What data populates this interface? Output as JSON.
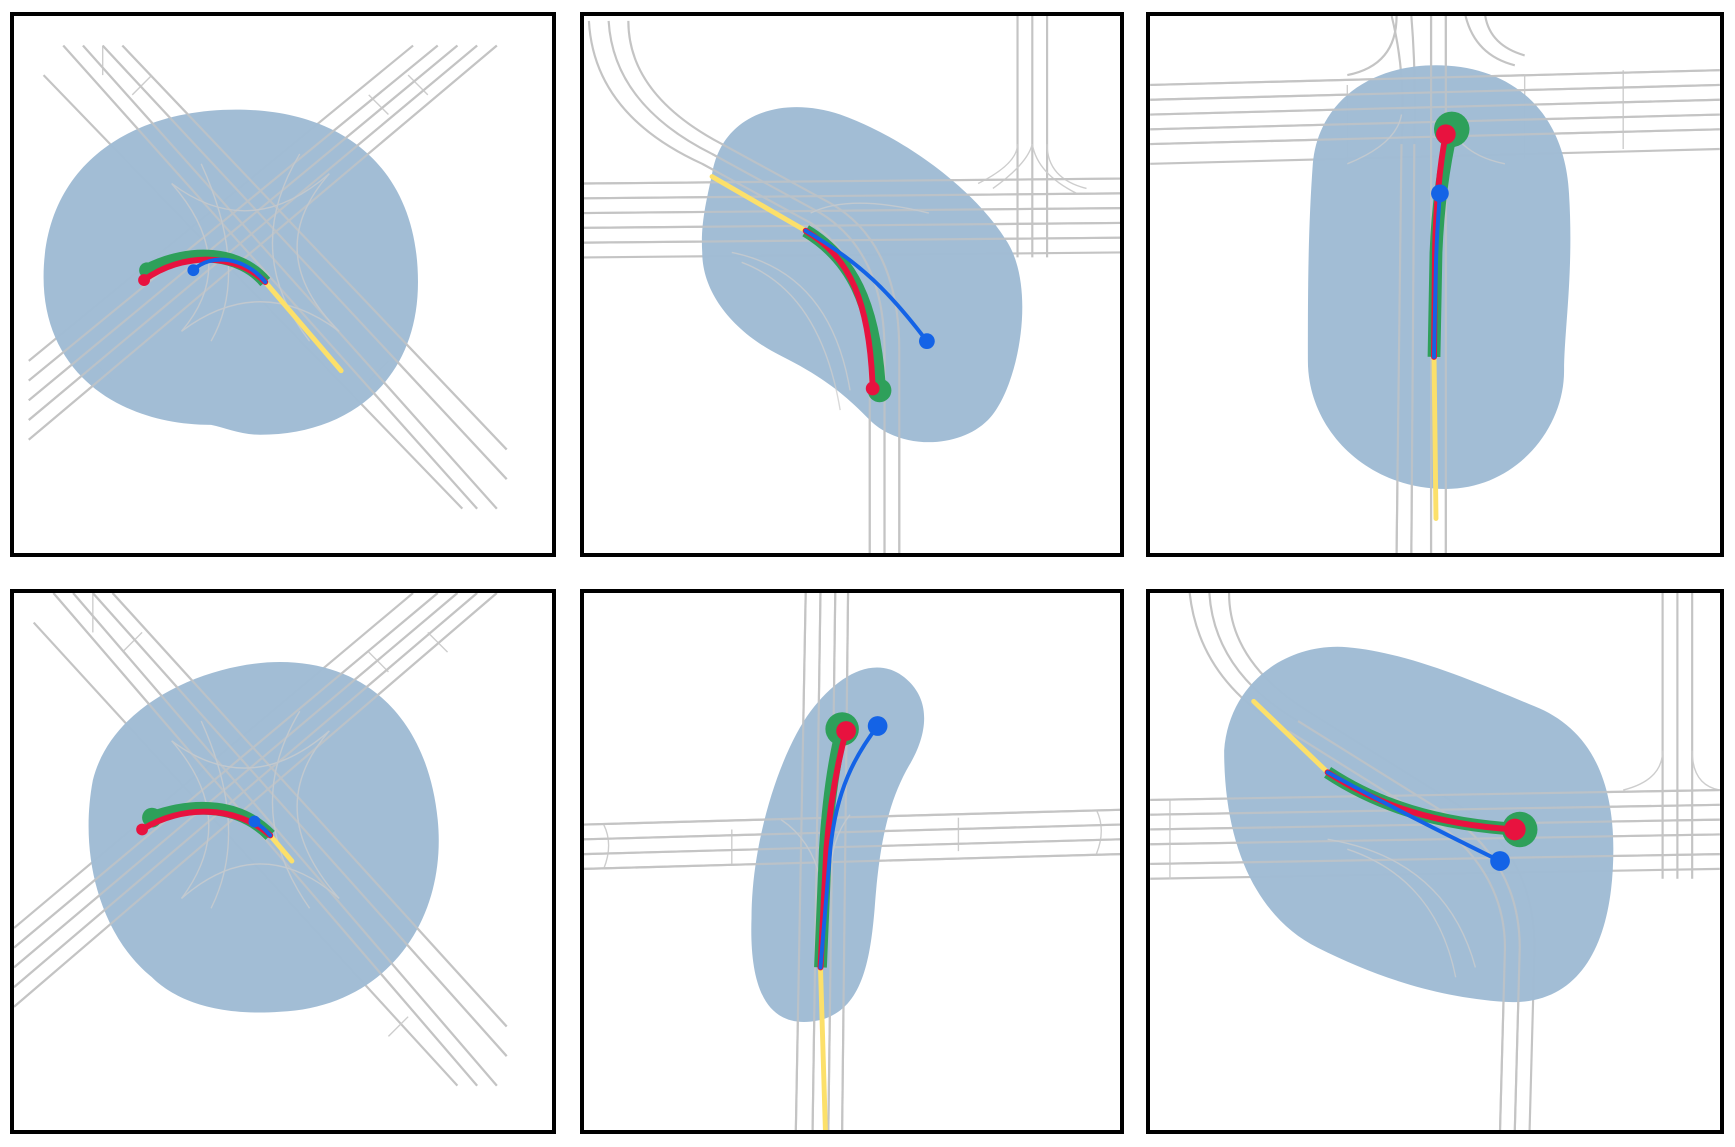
{
  "colors": {
    "background": "#ffffff",
    "panel_border": "#000000",
    "road": "#c4c4c4",
    "region": "#a0bcd4",
    "history": "#fce06a",
    "ground_truth": "#2ea05a",
    "prediction": "#e8123f",
    "baseline": "#1463e6"
  },
  "panels": [
    {
      "scene": "intersection-diagonal"
    },
    {
      "scene": "curved-road-crossing"
    },
    {
      "scene": "t-junction-vertical"
    },
    {
      "scene": "intersection-diagonal"
    },
    {
      "scene": "crossing-vertical"
    },
    {
      "scene": "curved-road-crossing"
    }
  ]
}
